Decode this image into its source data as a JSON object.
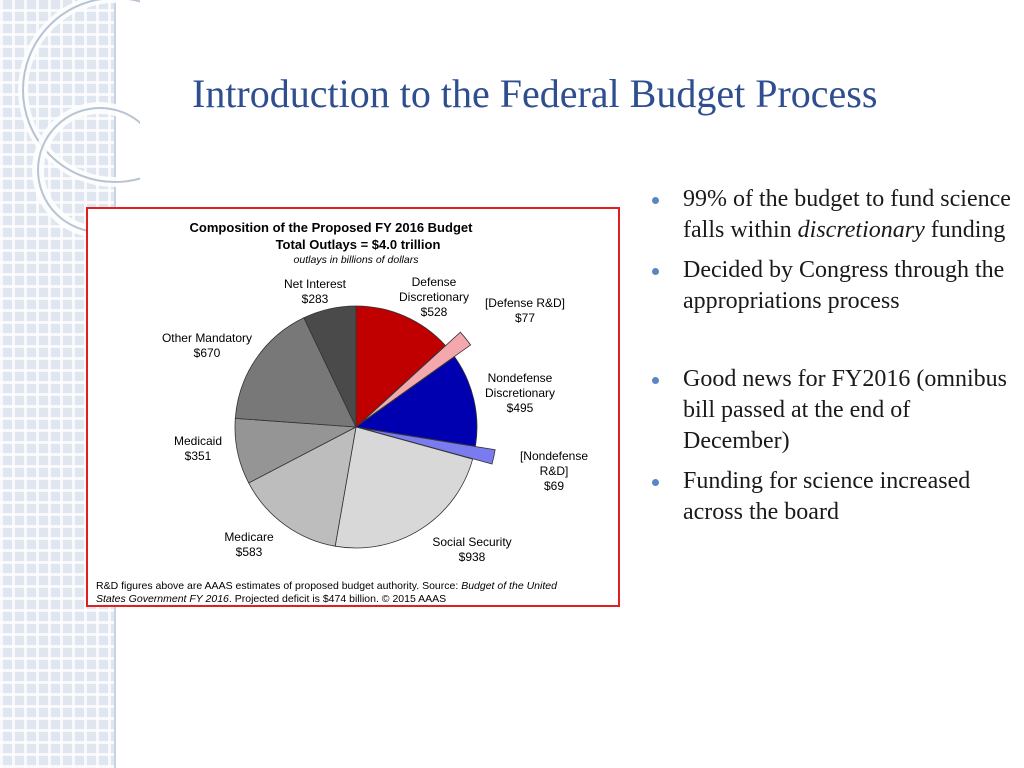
{
  "slide": {
    "title": "Introduction to the Federal Budget Process",
    "bullets": [
      {
        "pre": "99% of the budget to fund science falls within ",
        "em": "discretionary",
        "post": " funding"
      },
      {
        "text": "Decided by Congress through the appropriations process"
      },
      {
        "text": "Good news for FY2016 (omnibus bill passed at the end of December)"
      },
      {
        "text": "Funding for science increased across the board"
      }
    ]
  },
  "colors": {
    "title": "#2e4e8f",
    "bullet": "#5b86c6",
    "frame": "#e02020"
  },
  "chart_data": {
    "type": "pie",
    "title": "Composition of the Proposed FY 2016 Budget",
    "subtitle": "Total Outlays = $4.0 trillion",
    "note": "outlays in billions of dollars",
    "units": "billions of dollars",
    "slices": [
      {
        "name": "Defense Discretionary",
        "value": 528,
        "value_label": "$528",
        "color": "#c00000"
      },
      {
        "name": "[Defense R&D]",
        "value": 77,
        "value_label": "$77",
        "color": "#f4a7ad",
        "exploded": true
      },
      {
        "name": "Nondefense Discretionary",
        "value": 495,
        "value_label": "$495",
        "color": "#0000b0"
      },
      {
        "name": "[Nondefense R&D]",
        "value": 69,
        "value_label": "$69",
        "color": "#7b7bf0",
        "exploded": true
      },
      {
        "name": "Social Security",
        "value": 938,
        "value_label": "$938",
        "color": "#d8d8d8"
      },
      {
        "name": "Medicare",
        "value": 583,
        "value_label": "$583",
        "color": "#bdbdbd"
      },
      {
        "name": "Medicaid",
        "value": 351,
        "value_label": "$351",
        "color": "#959595"
      },
      {
        "name": "Other Mandatory",
        "value": 670,
        "value_label": "$670",
        "color": "#787878"
      },
      {
        "name": "Net Interest",
        "value": 283,
        "value_label": "$283",
        "color": "#4a4a4a"
      }
    ],
    "source_prefix": "R&D figures above are AAAS estimates of proposed budget authority. Source: ",
    "source_em1": "Budget of the United",
    "source_em2": "States Government FY 2016",
    "source_suffix": ". Projected deficit is $474 billion. © 2015 AAAS"
  }
}
